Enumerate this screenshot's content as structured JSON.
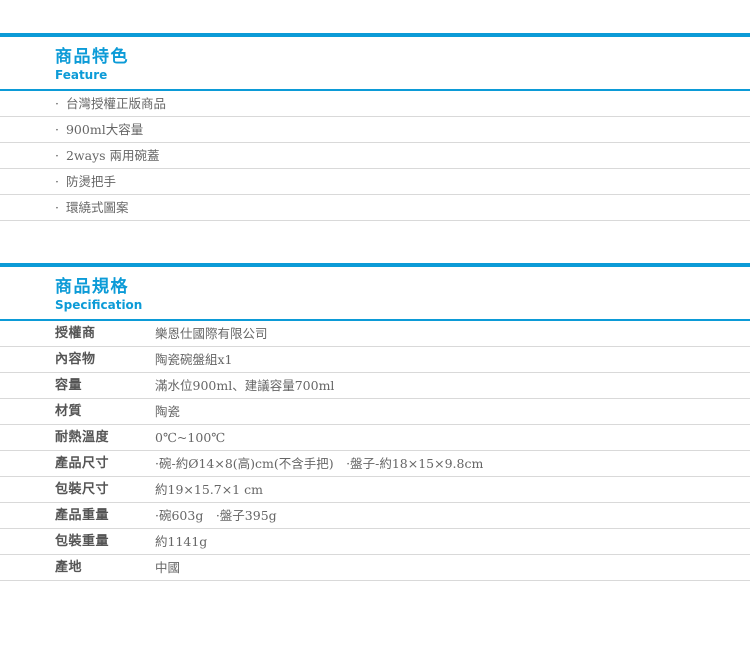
{
  "theme": {
    "accent_blue": "#0c9bd7",
    "divider_gray": "#d9d9d9",
    "label_color": "#555555",
    "value_color": "#666666"
  },
  "bullet": "·",
  "feature_section": {
    "title": "商品特色",
    "subtitle": "Feature",
    "items": [
      "台灣授權正版商品",
      "900ml大容量",
      "2ways 兩用碗蓋",
      "防燙把手",
      "環繞式圖案"
    ]
  },
  "spec_section": {
    "title": "商品規格",
    "subtitle": "Specification",
    "rows": [
      {
        "label": "授權商",
        "value": "樂恩仕國際有限公司"
      },
      {
        "label": "內容物",
        "value": "陶瓷碗盤組x1"
      },
      {
        "label": "容量",
        "value": "滿水位900ml、建議容量700ml"
      },
      {
        "label": "材質",
        "value": "陶瓷"
      },
      {
        "label": "耐熱溫度",
        "value": "0℃~100℃"
      },
      {
        "label": "產品尺寸",
        "value": "·碗-約Ø14×8(高)cm(不含手把)　·盤子-約18×15×9.8cm"
      },
      {
        "label": "包裝尺寸",
        "value": "約19×15.7×1 cm"
      },
      {
        "label": "產品重量",
        "value": "·碗603g　·盤子395g"
      },
      {
        "label": "包裝重量",
        "value": "約1141g"
      },
      {
        "label": "產地",
        "value": "中國"
      }
    ]
  }
}
